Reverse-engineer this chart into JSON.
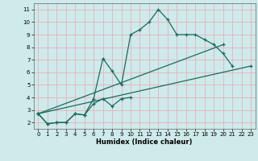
{
  "xlabel": "Humidex (Indice chaleur)",
  "bg_color": "#ceeaea",
  "grid_color": "#e8b0c0",
  "line_color": "#1a6b5a",
  "xlim": [
    -0.5,
    23.5
  ],
  "ylim": [
    1.5,
    11.5
  ],
  "xticks": [
    0,
    1,
    2,
    3,
    4,
    5,
    6,
    7,
    8,
    9,
    10,
    11,
    12,
    13,
    14,
    15,
    16,
    17,
    18,
    19,
    20,
    21,
    22,
    23
  ],
  "yticks": [
    2,
    3,
    4,
    5,
    6,
    7,
    8,
    9,
    10,
    11
  ],
  "line1_x": [
    0,
    1,
    2,
    3,
    4,
    5,
    6,
    7,
    8,
    9,
    10,
    11,
    12,
    13,
    14,
    15,
    16,
    17,
    18,
    19,
    20,
    21
  ],
  "line1_y": [
    2.7,
    1.9,
    2.0,
    2.0,
    2.7,
    2.6,
    3.9,
    7.1,
    6.1,
    5.0,
    9.0,
    9.4,
    10.0,
    11.0,
    10.2,
    9.0,
    9.0,
    9.0,
    8.6,
    8.2,
    7.5,
    6.5
  ],
  "line2_x": [
    0,
    1,
    2,
    3,
    4,
    5,
    6,
    7,
    8,
    9,
    10
  ],
  "line2_y": [
    2.7,
    1.9,
    2.0,
    2.0,
    2.7,
    2.6,
    3.5,
    3.9,
    3.3,
    3.9,
    4.0
  ],
  "line3_x": [
    0,
    23
  ],
  "line3_y": [
    2.7,
    6.5
  ],
  "line4_x": [
    0,
    20
  ],
  "line4_y": [
    2.7,
    8.2
  ],
  "ms": 3.0,
  "lw": 0.9
}
